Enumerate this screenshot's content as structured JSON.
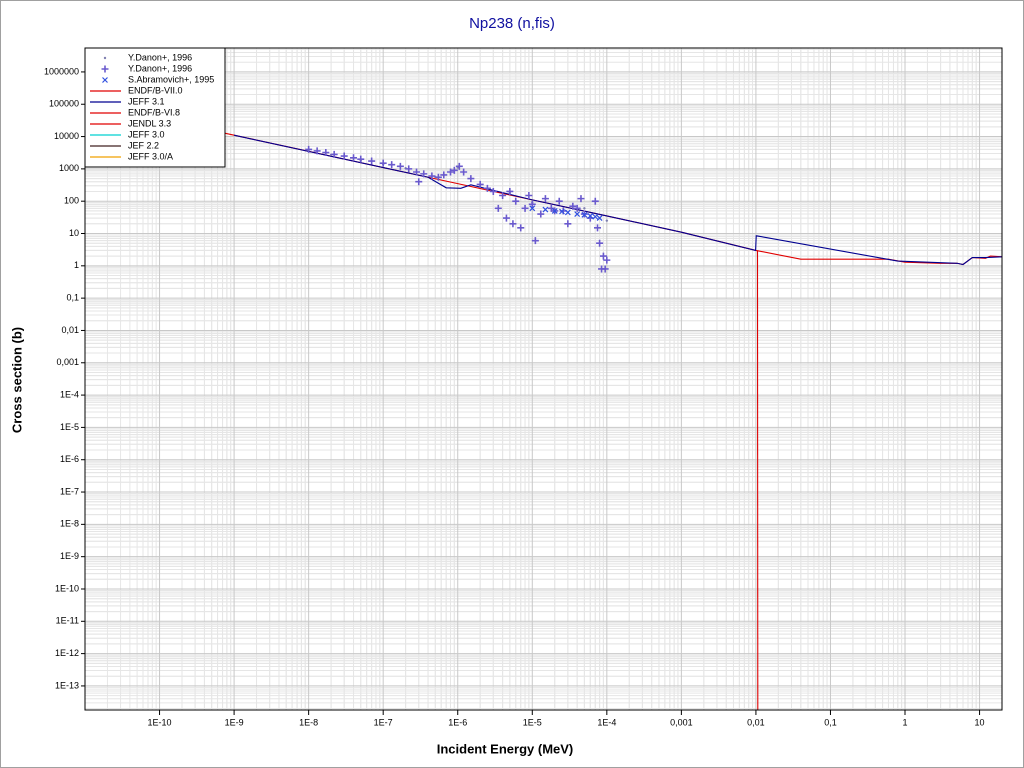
{
  "chart_data": {
    "type": "line",
    "title": "Np238 (n,fis)",
    "x_label": "Incident Energy (MeV)",
    "y_label": "Cross section (b)",
    "xscale": "log",
    "yscale": "log",
    "grid": true,
    "minor_grid": true,
    "legend": "upper left",
    "xlim": [
      1e-11,
      20
    ],
    "ylim": [
      1.8e-14,
      5500000.0
    ],
    "xticks": [
      {
        "value": 1e-10,
        "label": "1E-10"
      },
      {
        "value": 1e-09,
        "label": "1E-9"
      },
      {
        "value": 1e-08,
        "label": "1E-8"
      },
      {
        "value": 1e-07,
        "label": "1E-7"
      },
      {
        "value": 1e-06,
        "label": "1E-6"
      },
      {
        "value": 1e-05,
        "label": "1E-5"
      },
      {
        "value": 0.0001,
        "label": "1E-4"
      },
      {
        "value": 0.001,
        "label": "0,001"
      },
      {
        "value": 0.01,
        "label": "0,01"
      },
      {
        "value": 0.1,
        "label": "0,1"
      },
      1,
      10
    ],
    "yticks": [
      1000000,
      100000,
      10000,
      1000,
      100,
      10,
      1,
      {
        "value": 0.1,
        "label": "0,1"
      },
      {
        "value": 0.01,
        "label": "0,01"
      },
      {
        "value": 0.001,
        "label": "0,001"
      },
      {
        "value": 0.0001,
        "label": "1E-4"
      },
      {
        "value": 1e-05,
        "label": "1E-5"
      },
      {
        "value": 1e-06,
        "label": "1E-6"
      },
      {
        "value": 1e-07,
        "label": "1E-7"
      },
      {
        "value": 1e-08,
        "label": "1E-8"
      },
      {
        "value": 1e-09,
        "label": "1E-9"
      },
      {
        "value": 1e-10,
        "label": "1E-10"
      },
      {
        "value": 1e-11,
        "label": "1E-11"
      },
      {
        "value": 1e-12,
        "label": "1E-12"
      },
      {
        "value": 1e-13,
        "label": "1E-13"
      }
    ],
    "series": [
      {
        "name": "Y.Danon+, 1996",
        "type": "scatter",
        "marker": "dot",
        "color": "#8080b0",
        "x": [
          1e-08,
          2e-08,
          5e-08,
          1e-07,
          2e-07,
          5e-07,
          1e-06,
          2e-06,
          5e-06,
          1e-05,
          2e-05,
          5e-05,
          0.0001
        ],
        "values": [
          3800,
          2700,
          1800,
          1400,
          1050,
          560,
          1100,
          320,
          180,
          90,
          55,
          60,
          25
        ]
      },
      {
        "name": "Y.Danon+, 1996",
        "type": "scatter",
        "marker": "plus",
        "color": "#6a5acd",
        "x": [
          1e-08,
          1.3e-08,
          1.7e-08,
          2.2e-08,
          3e-08,
          4e-08,
          5e-08,
          7e-08,
          1e-07,
          1.3e-07,
          1.7e-07,
          2.2e-07,
          2.8e-07,
          3e-07,
          3.5e-07,
          4.5e-07,
          5.5e-07,
          6.5e-07,
          8e-07,
          9e-07,
          1.05e-06,
          1.2e-06,
          1.5e-06,
          2e-06,
          2.5e-06,
          3e-06,
          3.5e-06,
          4e-06,
          4.5e-06,
          5e-06,
          5.5e-06,
          6e-06,
          7e-06,
          8e-06,
          9e-06,
          1e-05,
          1.1e-05,
          1.3e-05,
          1.5e-05,
          1.8e-05,
          2e-05,
          2.3e-05,
          2.6e-05,
          3e-05,
          3.5e-05,
          4e-05,
          4.5e-05,
          5e-05,
          6e-05,
          7e-05,
          7.5e-05,
          8e-05,
          8.5e-05,
          9e-05,
          9.5e-05,
          0.0001
        ],
        "values": [
          4000,
          3600,
          3200,
          2800,
          2500,
          2200,
          2000,
          1750,
          1500,
          1350,
          1200,
          1000,
          800,
          400,
          700,
          600,
          550,
          650,
          800,
          900,
          1200,
          800,
          500,
          330,
          250,
          200,
          60,
          150,
          30,
          200,
          20,
          100,
          15,
          60,
          150,
          80,
          6,
          40,
          120,
          60,
          50,
          100,
          50,
          20,
          70,
          60,
          120,
          40,
          30,
          100,
          15,
          5,
          0.8,
          2,
          0.8,
          1.5
        ]
      },
      {
        "name": "S.Abramovich+, 1995",
        "type": "scatter",
        "marker": "x",
        "color": "#3050e0",
        "x": [
          1e-05,
          1.5e-05,
          2e-05,
          2.5e-05,
          3e-05,
          4e-05,
          5e-05,
          6e-05,
          7e-05,
          8e-05
        ],
        "values": [
          60,
          55,
          50,
          48,
          45,
          40,
          38,
          35,
          33,
          30
        ]
      },
      {
        "name": "ENDF/B-VII.0",
        "type": "line",
        "color": "#e00000",
        "x": [
          1e-11,
          1e-09,
          1e-08,
          1e-07,
          1e-06,
          1e-05,
          0.0001,
          0.001,
          0.01,
          0.04,
          0.6,
          1,
          3,
          5,
          6,
          8,
          12,
          14,
          20
        ],
        "values": [
          110000,
          11000,
          3500,
          1100,
          350,
          110,
          35,
          11,
          3,
          1.6,
          1.6,
          1.3,
          1.2,
          1.2,
          1.1,
          1.8,
          1.7,
          2.0,
          1.9
        ]
      },
      {
        "name": "JEFF 3.1",
        "type": "line",
        "color": "#000090",
        "x": [
          1e-09,
          1e-07,
          4e-07,
          7e-07,
          1.1e-06,
          1.5e-06,
          1e-05,
          0.0001,
          0.001,
          0.0099,
          0.0101,
          0.8,
          5,
          6,
          8,
          12,
          20
        ],
        "values": [
          11000,
          1100,
          550,
          260,
          250,
          320,
          110,
          35,
          11,
          3,
          8.5,
          1.4,
          1.2,
          1.1,
          1.8,
          1.8,
          1.9
        ]
      },
      {
        "name": "ENDF/B-VI.8",
        "type": "line",
        "color": "#e00000",
        "x": [
          0.0105,
          0.0106
        ],
        "values": [
          3,
          1e-14
        ]
      },
      {
        "name": "JENDL 3.3",
        "type": "line",
        "color": "#e00000",
        "x": [],
        "values": []
      },
      {
        "name": "JEFF 3.0",
        "type": "line",
        "color": "#00d0d0",
        "x": [],
        "values": []
      },
      {
        "name": "JEF 2.2",
        "type": "line",
        "color": "#402020",
        "x": [],
        "values": []
      },
      {
        "name": "JEFF 3.0/A",
        "type": "line",
        "color": "#f0a000",
        "x": [],
        "values": []
      }
    ]
  }
}
